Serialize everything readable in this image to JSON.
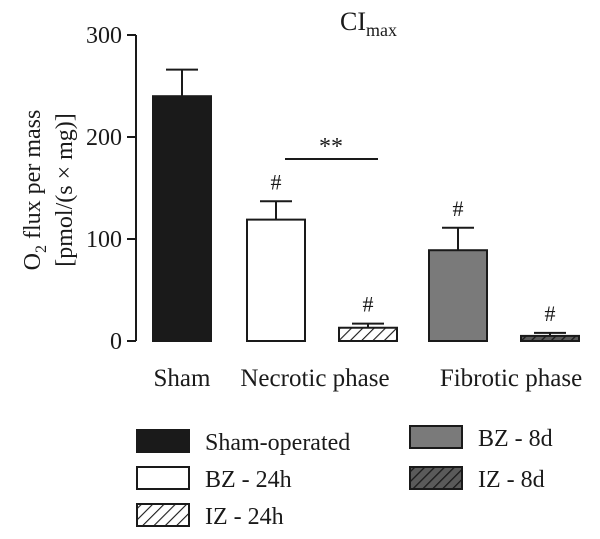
{
  "chart_data": {
    "type": "bar",
    "title_main": "CI",
    "title_sub": "max",
    "ylabel_line1_main": "O",
    "ylabel_line1_sub": "2",
    "ylabel_line1_rest": " flux per mass",
    "ylabel_line2": "[pmol/(s × mg)]",
    "ylim": [
      0,
      300
    ],
    "yticks": [
      0,
      100,
      200,
      300
    ],
    "groups": [
      "Sham",
      "Necrotic phase",
      "Fibrotic phase"
    ],
    "series": [
      {
        "name": "Sham-operated",
        "value": 240,
        "error": 26,
        "annotation": "",
        "fill": "#1a1a1a",
        "pattern": "solid"
      },
      {
        "name": "BZ - 24h",
        "value": 119,
        "error": 18,
        "annotation": "#",
        "fill": "#ffffff",
        "pattern": "solid"
      },
      {
        "name": "IZ - 24h",
        "value": 13,
        "error": 4,
        "annotation": "#",
        "fill": "#ffffff",
        "pattern": "hatch"
      },
      {
        "name": "BZ - 8d",
        "value": 89,
        "error": 22,
        "annotation": "#",
        "fill": "#7a7a7a",
        "pattern": "solid"
      },
      {
        "name": "IZ - 8d",
        "value": 5,
        "error": 3,
        "annotation": "#",
        "fill": "#5a5a5a",
        "pattern": "hatch-dark"
      }
    ],
    "significance": {
      "label": "**",
      "between": [
        "BZ - 24h",
        "IZ - 24h"
      ]
    },
    "legend_position": "bottom"
  }
}
